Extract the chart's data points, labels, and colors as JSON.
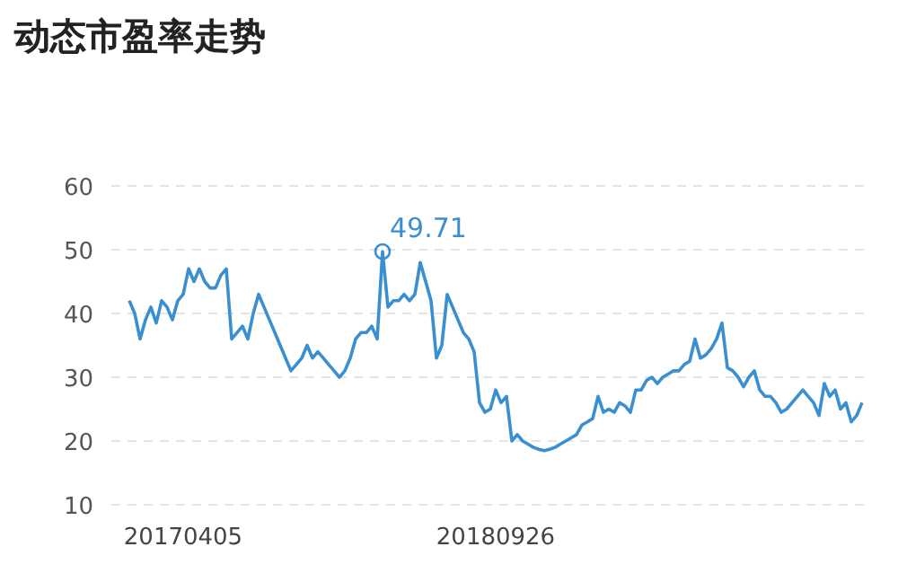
{
  "chart_data": {
    "type": "line",
    "title": "动态市盈率走势",
    "categories": [
      null,
      null,
      null,
      null,
      null,
      null,
      null,
      null,
      null,
      null,
      "20170405",
      null,
      null,
      null,
      null,
      null,
      null,
      null,
      null,
      null,
      null,
      null,
      null,
      null,
      null,
      null,
      null,
      null,
      null,
      null,
      null,
      null,
      null,
      null,
      null,
      null,
      null,
      null,
      null,
      null,
      null,
      null,
      null,
      null,
      null,
      null,
      null,
      null,
      null,
      null,
      null,
      null,
      null,
      null,
      null,
      null,
      null,
      null,
      null,
      null,
      null,
      null,
      null,
      null,
      null,
      null,
      null,
      null,
      "20180926",
      null,
      null,
      null,
      null,
      null,
      null,
      null,
      null,
      null,
      null,
      null,
      null,
      null,
      null,
      null,
      null,
      null,
      null,
      null,
      null,
      null,
      null,
      null,
      null,
      null,
      null,
      null,
      null,
      null,
      null,
      null,
      null,
      null,
      null,
      null,
      null,
      null,
      null,
      null,
      null,
      null,
      null,
      null,
      null,
      null,
      null,
      null,
      null,
      null,
      null,
      null,
      null,
      null,
      null,
      null,
      null,
      null,
      null,
      null,
      null,
      null,
      null,
      null,
      null,
      null,
      null,
      null,
      null
    ],
    "values": [
      42,
      40,
      36,
      39,
      41,
      38.5,
      42,
      41,
      39,
      42,
      43,
      47,
      45,
      47,
      45,
      44,
      44,
      46,
      47,
      36,
      37,
      38,
      36,
      40,
      43,
      41,
      39,
      37,
      35,
      33,
      31,
      32,
      33,
      35,
      33,
      34,
      33,
      32,
      31,
      30,
      31,
      33,
      36,
      37,
      37,
      38,
      36,
      49.71,
      41,
      42,
      42,
      43,
      42,
      43,
      48,
      45,
      42,
      33,
      35,
      43,
      41,
      39,
      37,
      36,
      34,
      26,
      24.5,
      25,
      28,
      26,
      27,
      20,
      21,
      20,
      19.5,
      19,
      18.7,
      18.5,
      18.7,
      19,
      19.5,
      20,
      20.5,
      21,
      22.5,
      23,
      23.5,
      27,
      24.5,
      25,
      24.5,
      26,
      25.5,
      24.5,
      28,
      28,
      29.5,
      30,
      29,
      30,
      30.5,
      31,
      31,
      32,
      32.5,
      36,
      33,
      33.5,
      34.5,
      36,
      38.5,
      31.5,
      31,
      30,
      28.5,
      30,
      31,
      28,
      27,
      27,
      26,
      24.5,
      25,
      26,
      27,
      28,
      27,
      26,
      24,
      29,
      27,
      28,
      25,
      26,
      23,
      24,
      26
    ],
    "color": "#3a8fd0",
    "ylim": [
      10,
      60
    ],
    "yticks": [
      10,
      20,
      30,
      40,
      50,
      60
    ],
    "grid": true,
    "annotations": [
      "49.71"
    ]
  }
}
